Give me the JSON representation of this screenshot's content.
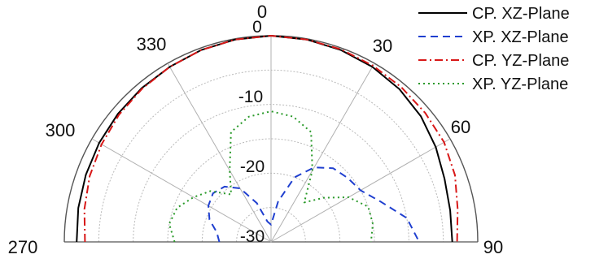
{
  "chart_data": {
    "type": "polar-line",
    "title": "",
    "angle_unit": "deg",
    "angle_ticks": [
      "0",
      "30",
      "60",
      "90",
      "270",
      "300",
      "330"
    ],
    "radial_ticks": [
      "0",
      "-10",
      "-20",
      "-30"
    ],
    "rlim": [
      -30,
      0
    ],
    "theta_range": [
      -90,
      90
    ],
    "grid": true,
    "legend_position": "top-right",
    "series": [
      {
        "name": "CP. XZ-Plane",
        "color": "#000000",
        "dash": "solid",
        "theta": [
          -90,
          -80,
          -70,
          -60,
          -50,
          -40,
          -30,
          -20,
          -10,
          0,
          10,
          20,
          30,
          40,
          50,
          60,
          70,
          80,
          90
        ],
        "r": [
          -1.8,
          -1.6,
          -1.4,
          -1.2,
          -1.0,
          -0.8,
          -0.6,
          -0.3,
          -0.1,
          0,
          -0.1,
          -0.3,
          -0.6,
          -1.0,
          -1.6,
          -2.4,
          -3.2,
          -3.6,
          -3.7
        ]
      },
      {
        "name": "XP. XZ-Plane",
        "color": "#1f3fcf",
        "dash": "dashed",
        "theta": [
          -90,
          -80,
          -70,
          -60,
          -50,
          -40,
          -30,
          -20,
          -10,
          0,
          10,
          20,
          30,
          40,
          50,
          60,
          70,
          80,
          90
        ],
        "r": [
          -22.5,
          -22,
          -20.5,
          -19.5,
          -19,
          -19.5,
          -21,
          -24,
          -27,
          -27.5,
          -24,
          -20,
          -17.5,
          -16,
          -15.5,
          -15,
          -13,
          -10,
          -8.5
        ]
      },
      {
        "name": "CP. YZ-Plane",
        "color": "#d81818",
        "dash": "dashdot",
        "theta": [
          -90,
          -80,
          -70,
          -60,
          -50,
          -40,
          -30,
          -20,
          -10,
          0,
          10,
          20,
          30,
          40,
          50,
          60,
          70,
          80,
          90
        ],
        "r": [
          -3.0,
          -2.5,
          -2.0,
          -1.6,
          -1.2,
          -0.9,
          -0.6,
          -0.3,
          -0.1,
          0,
          -0.1,
          -0.2,
          -0.4,
          -0.6,
          -0.8,
          -1.0,
          -1.6,
          -2.5,
          -3.0
        ]
      },
      {
        "name": "XP. YZ-Plane",
        "color": "#2a9a2a",
        "dash": "dotted",
        "theta": [
          -90,
          -80,
          -70,
          -60,
          -50,
          -40,
          -30,
          -20,
          -10,
          0,
          10,
          20,
          30,
          40,
          50,
          60,
          70,
          80,
          90
        ],
        "r": [
          -16,
          -15,
          -15.5,
          -17,
          -18.5,
          -21,
          -18,
          -13,
          -11.5,
          -11,
          -11.5,
          -13,
          -18,
          -22.5,
          -20,
          -17,
          -15,
          -15,
          -15.5
        ]
      }
    ]
  }
}
